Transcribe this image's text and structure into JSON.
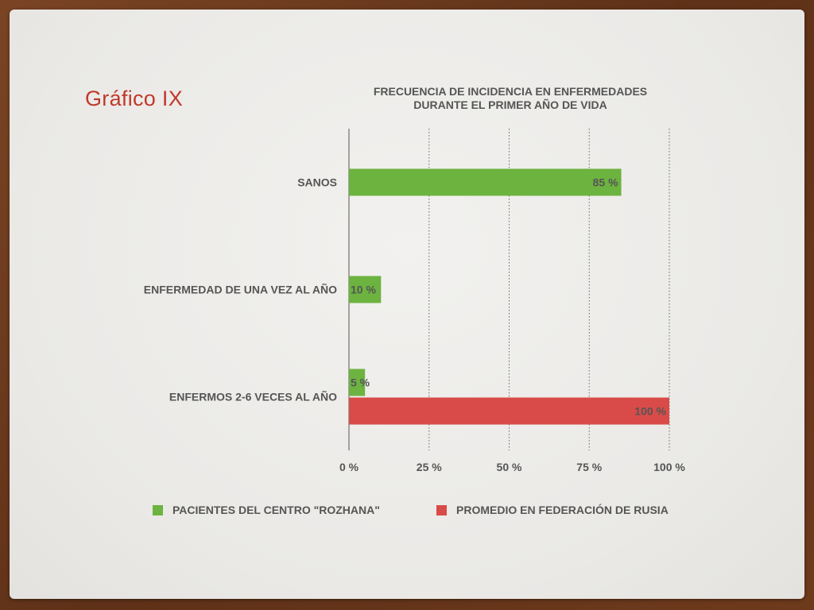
{
  "slide": {
    "title": "Gráfico IX"
  },
  "chart_data": {
    "type": "bar",
    "orientation": "horizontal",
    "title_lines": [
      "FRECUENCIA DE INCIDENCIA EN ENFERMEDADES",
      "DURANTE EL PRIMER AÑO DE VIDA"
    ],
    "categories": [
      "SANOS",
      "ENFERMEDAD DE UNA VEZ AL AÑO",
      "ENFERMOS 2-6 VECES AL AÑO"
    ],
    "series": [
      {
        "name": "PACIENTES DEL CENTRO \"ROZHANA\"",
        "color": "#6cb33f",
        "values": [
          85,
          10,
          5
        ],
        "labels": [
          "85 %",
          "10 %",
          "5 %"
        ]
      },
      {
        "name": "PROMEDIO EN FEDERACIÓN DE RUSIA",
        "color": "#d94b48",
        "values": [
          null,
          null,
          100
        ],
        "labels": [
          "",
          "",
          "100 %"
        ]
      }
    ],
    "xlim": [
      0,
      100
    ],
    "xticks": [
      0,
      25,
      50,
      75,
      100
    ],
    "xtick_labels": [
      "0 %",
      "25 %",
      "50 %",
      "75 %",
      "100 %"
    ],
    "grid": "vertical-dotted",
    "legend_position": "bottom"
  }
}
